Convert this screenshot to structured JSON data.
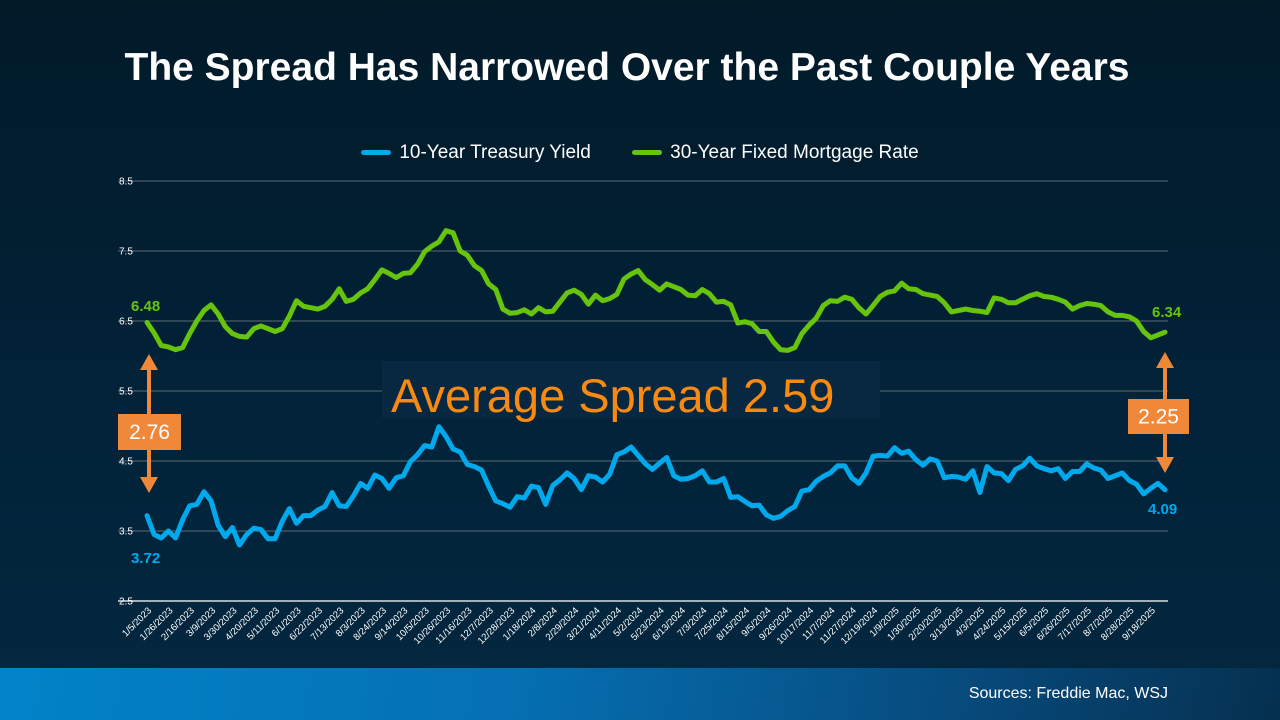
{
  "chart_data": {
    "type": "line",
    "title": "The Spread Has Narrowed Over the Past Couple Years",
    "xlabel": "",
    "ylabel": "",
    "ylim": [
      2.5,
      8.5
    ],
    "yticks": [
      "2.5",
      "3.5",
      "4.5",
      "5.5",
      "6.5",
      "7.5",
      "8.5"
    ],
    "grid": true,
    "legend_position": "top",
    "x_tick_labels": [
      "1/5/2023",
      "1/26/2023",
      "2/16/2023",
      "3/9/2023",
      "3/30/2023",
      "4/20/2023",
      "5/11/2023",
      "6/1/2023",
      "6/22/2023",
      "7/13/2023",
      "8/3/2023",
      "8/24/2023",
      "9/14/2023",
      "10/5/2023",
      "10/26/2023",
      "11/16/2023",
      "12/7/2023",
      "12/28/2023",
      "1/18/2024",
      "2/8/2024",
      "2/29/2024",
      "3/21/2024",
      "4/11/2024",
      "5/2/2024",
      "5/23/2024",
      "6/13/2024",
      "7/3/2024",
      "7/25/2024",
      "8/15/2024",
      "9/5/2024",
      "9/26/2024",
      "10/17/2024",
      "11/7/2024",
      "11/27/2024",
      "12/19/2024",
      "1/9/2025",
      "1/30/2025",
      "2/20/2025",
      "3/13/2025",
      "4/3/2025",
      "4/24/2025",
      "5/15/2025",
      "6/5/2025",
      "6/26/2025",
      "7/17/2025",
      "8/7/2025",
      "8/28/2025",
      "9/18/2025"
    ],
    "series": [
      {
        "name": "10-Year Treasury Yield",
        "color": "#00a9ec",
        "values": [
          3.72,
          3.45,
          3.4,
          3.5,
          3.4,
          3.66,
          3.86,
          3.88,
          4.06,
          3.93,
          3.58,
          3.42,
          3.55,
          3.3,
          3.45,
          3.54,
          3.52,
          3.39,
          3.39,
          3.64,
          3.82,
          3.61,
          3.72,
          3.72,
          3.8,
          3.85,
          4.05,
          3.86,
          3.85,
          4.0,
          4.18,
          4.11,
          4.3,
          4.25,
          4.11,
          4.26,
          4.29,
          4.49,
          4.59,
          4.72,
          4.7,
          4.99,
          4.85,
          4.67,
          4.63,
          4.45,
          4.42,
          4.37,
          4.14,
          3.93,
          3.89,
          3.84,
          3.99,
          3.97,
          4.14,
          4.12,
          3.88,
          4.15,
          4.23,
          4.33,
          4.25,
          4.09,
          4.29,
          4.27,
          4.2,
          4.31,
          4.59,
          4.63,
          4.7,
          4.58,
          4.46,
          4.38,
          4.47,
          4.55,
          4.29,
          4.24,
          4.25,
          4.29,
          4.36,
          4.2,
          4.2,
          4.25,
          3.98,
          3.99,
          3.92,
          3.86,
          3.87,
          3.73,
          3.68,
          3.71,
          3.79,
          3.85,
          4.07,
          4.09,
          4.21,
          4.28,
          4.33,
          4.43,
          4.43,
          4.26,
          4.18,
          4.33,
          4.57,
          4.58,
          4.57,
          4.69,
          4.61,
          4.64,
          4.52,
          4.44,
          4.53,
          4.5,
          4.26,
          4.28,
          4.27,
          4.24,
          4.36,
          4.05,
          4.42,
          4.33,
          4.32,
          4.22,
          4.38,
          4.43,
          4.54,
          4.43,
          4.39,
          4.36,
          4.39,
          4.25,
          4.35,
          4.35,
          4.46,
          4.4,
          4.37,
          4.25,
          4.29,
          4.33,
          4.22,
          4.17,
          4.03,
          4.11,
          4.18,
          4.09
        ],
        "first_label": "3.72",
        "last_label": "4.09"
      },
      {
        "name": "30-Year Fixed Mortgage Rate",
        "color": "#66c40c",
        "values": [
          6.48,
          6.33,
          6.15,
          6.13,
          6.09,
          6.12,
          6.32,
          6.5,
          6.65,
          6.73,
          6.6,
          6.42,
          6.32,
          6.28,
          6.27,
          6.39,
          6.43,
          6.39,
          6.35,
          6.39,
          6.57,
          6.79,
          6.71,
          6.69,
          6.67,
          6.71,
          6.81,
          6.96,
          6.78,
          6.81,
          6.9,
          6.96,
          7.09,
          7.23,
          7.18,
          7.12,
          7.18,
          7.19,
          7.31,
          7.49,
          7.57,
          7.63,
          7.79,
          7.76,
          7.5,
          7.44,
          7.29,
          7.22,
          7.03,
          6.95,
          6.67,
          6.61,
          6.62,
          6.66,
          6.6,
          6.69,
          6.63,
          6.64,
          6.77,
          6.9,
          6.94,
          6.88,
          6.74,
          6.87,
          6.79,
          6.82,
          6.88,
          7.1,
          7.17,
          7.22,
          7.09,
          7.02,
          6.94,
          7.03,
          6.99,
          6.95,
          6.87,
          6.86,
          6.95,
          6.89,
          6.77,
          6.78,
          6.73,
          6.47,
          6.49,
          6.46,
          6.35,
          6.35,
          6.2,
          6.09,
          6.08,
          6.12,
          6.32,
          6.44,
          6.54,
          6.72,
          6.79,
          6.78,
          6.84,
          6.81,
          6.69,
          6.6,
          6.72,
          6.85,
          6.91,
          6.93,
          7.04,
          6.96,
          6.95,
          6.89,
          6.87,
          6.85,
          6.76,
          6.63,
          6.65,
          6.67,
          6.65,
          6.64,
          6.62,
          6.83,
          6.81,
          6.76,
          6.76,
          6.81,
          6.86,
          6.89,
          6.85,
          6.84,
          6.81,
          6.77,
          6.67,
          6.72,
          6.75,
          6.74,
          6.72,
          6.63,
          6.58,
          6.58,
          6.56,
          6.5,
          6.35,
          6.26,
          6.3,
          6.34
        ],
        "first_label": "6.48",
        "last_label": "6.34"
      }
    ],
    "annotations": {
      "average_spread": "Average Spread 2.59",
      "start_spread": "2.76",
      "end_spread": "2.25",
      "accent_color": "#f0883a"
    }
  },
  "footer": {
    "sources": "Sources: Freddie Mac, WSJ"
  }
}
